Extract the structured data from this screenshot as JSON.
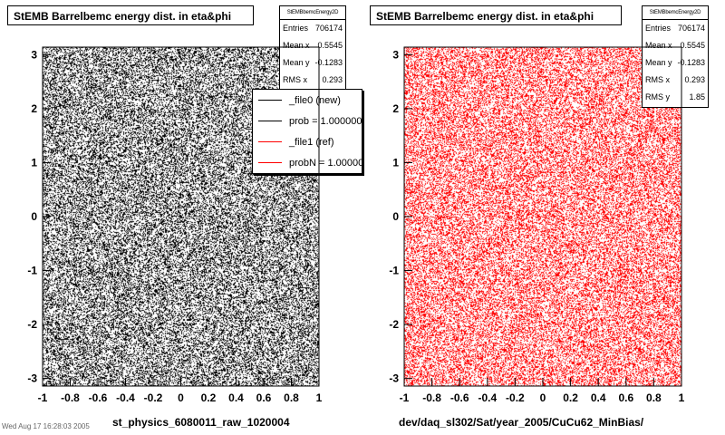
{
  "chart_data": [
    {
      "type": "scatter",
      "title": "StEMB Barrelbemc energy dist. in eta&phi",
      "xlabel": "st_physics_6080011_raw_1020004",
      "ylabel": "",
      "xlim": [
        -1,
        1
      ],
      "ylim": [
        -3.14,
        3.14
      ],
      "x_ticks": [
        "-1",
        "-0.8",
        "-0.6",
        "-0.4",
        "-0.2",
        "0",
        "0.2",
        "0.4",
        "0.6",
        "0.8",
        "1"
      ],
      "y_ticks": [
        "-3",
        "-2",
        "-1",
        "0",
        "1",
        "2",
        "3"
      ],
      "marker_color": "#000000",
      "stats": {
        "name": "StEMBbemcEnergy2D",
        "rows": [
          {
            "label": "Entries",
            "value": "706174"
          },
          {
            "label": "Mean x",
            "value": "0.5545"
          },
          {
            "label": "Mean y",
            "value": "-0.1283"
          },
          {
            "label": "RMS x",
            "value": "0.293"
          }
        ]
      },
      "legend": [
        {
          "label": "_file0 (new)",
          "color": "#000000"
        },
        {
          "label": "prob = 1.000000",
          "color": "#000000"
        },
        {
          "label": "_file1 (ref)",
          "color": "#ff0000"
        },
        {
          "label": "probN = 1.000000",
          "color": "#ff0000"
        }
      ]
    },
    {
      "type": "scatter",
      "title": "StEMB Barrelbemc energy dist. in eta&phi",
      "xlabel": "dev/daq_sl302/Sat/year_2005/CuCu62_MinBias/",
      "ylabel": "",
      "xlim": [
        -1,
        1
      ],
      "ylim": [
        -3.14,
        3.14
      ],
      "x_ticks": [
        "-1",
        "-0.8",
        "-0.6",
        "-0.4",
        "-0.2",
        "0",
        "0.2",
        "0.4",
        "0.6",
        "0.8",
        "1"
      ],
      "y_ticks": [
        "-3",
        "-2",
        "-1",
        "0",
        "1",
        "2",
        "3"
      ],
      "marker_color": "#ff0000",
      "stats": {
        "name": "StEMBbemcEnergy2D",
        "rows": [
          {
            "label": "Entries",
            "value": "706174"
          },
          {
            "label": "Mean x",
            "value": "0.5545"
          },
          {
            "label": "Mean y",
            "value": "-0.1283"
          },
          {
            "label": "RMS x",
            "value": "0.293"
          },
          {
            "label": "RMS y",
            "value": "1.85"
          }
        ]
      }
    }
  ],
  "footer": {
    "stamp": "Wed Aug 17 16:28:03 2005"
  }
}
